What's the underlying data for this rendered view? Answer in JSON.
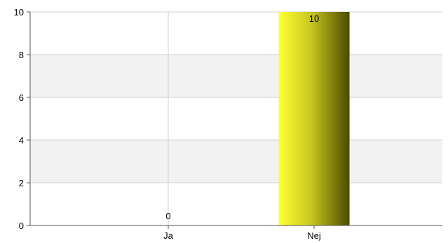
{
  "chart_data": {
    "type": "bar",
    "title": "",
    "xlabel": "",
    "ylabel": "",
    "categories": [
      "Ja",
      "Nej"
    ],
    "values": [
      0,
      10
    ],
    "data_labels": [
      "0",
      "10"
    ],
    "ylim": [
      0,
      10
    ],
    "yticks": [
      0,
      2,
      4,
      6,
      8,
      10
    ],
    "ytick_labels": [
      "0",
      "2",
      "4",
      "6",
      "8",
      "10"
    ],
    "grid": true,
    "legend": "none",
    "colors": {
      "bar_light": "#ffff33",
      "bar_mid": "#c8c820",
      "bar_dark": "#4a4a00",
      "band": "#f2f2f2",
      "gridline": "#d0d0d0",
      "axis": "#555555"
    }
  }
}
